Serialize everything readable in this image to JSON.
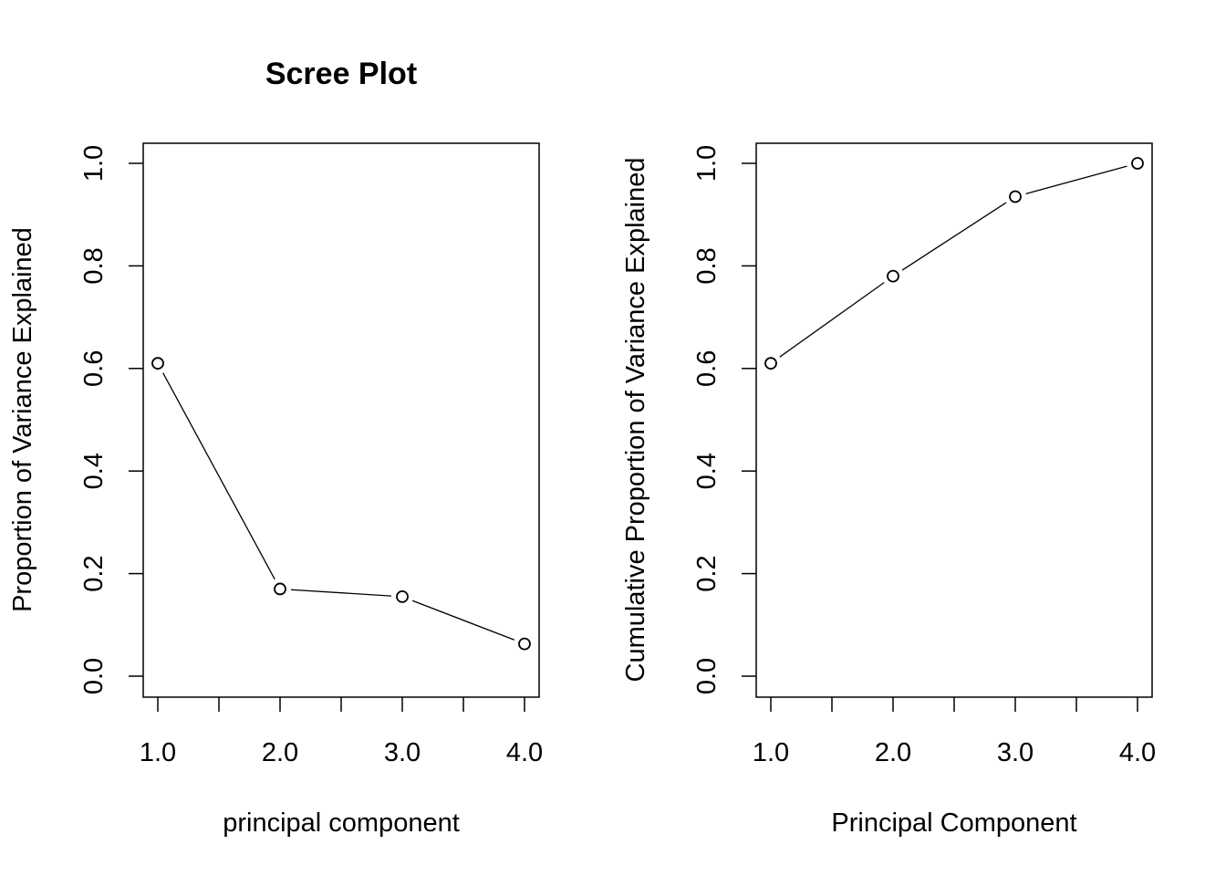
{
  "chart_data": [
    {
      "type": "line",
      "title": "Scree Plot",
      "xlabel": "principal component",
      "ylabel": "Proportion of Variance Explained",
      "x": [
        1,
        2,
        3,
        4
      ],
      "values": [
        0.61,
        0.17,
        0.155,
        0.063
      ],
      "xlim": [
        1,
        4
      ],
      "ylim": [
        0,
        1
      ],
      "xticks": [
        "1.0",
        "2.0",
        "3.0",
        "4.0"
      ],
      "yticks": [
        "0.0",
        "0.2",
        "0.4",
        "0.6",
        "0.8",
        "1.0"
      ],
      "grid": false,
      "marker": "open-circle"
    },
    {
      "type": "line",
      "title": "",
      "xlabel": "Principal Component",
      "ylabel": "Cumulative Proportion of Variance Explained",
      "x": [
        1,
        2,
        3,
        4
      ],
      "values": [
        0.61,
        0.78,
        0.935,
        1.0
      ],
      "xlim": [
        1,
        4
      ],
      "ylim": [
        0,
        1
      ],
      "xticks": [
        "1.0",
        "2.0",
        "3.0",
        "4.0"
      ],
      "yticks": [
        "0.0",
        "0.2",
        "0.4",
        "0.6",
        "0.8",
        "1.0"
      ],
      "grid": false,
      "marker": "open-circle"
    }
  ]
}
